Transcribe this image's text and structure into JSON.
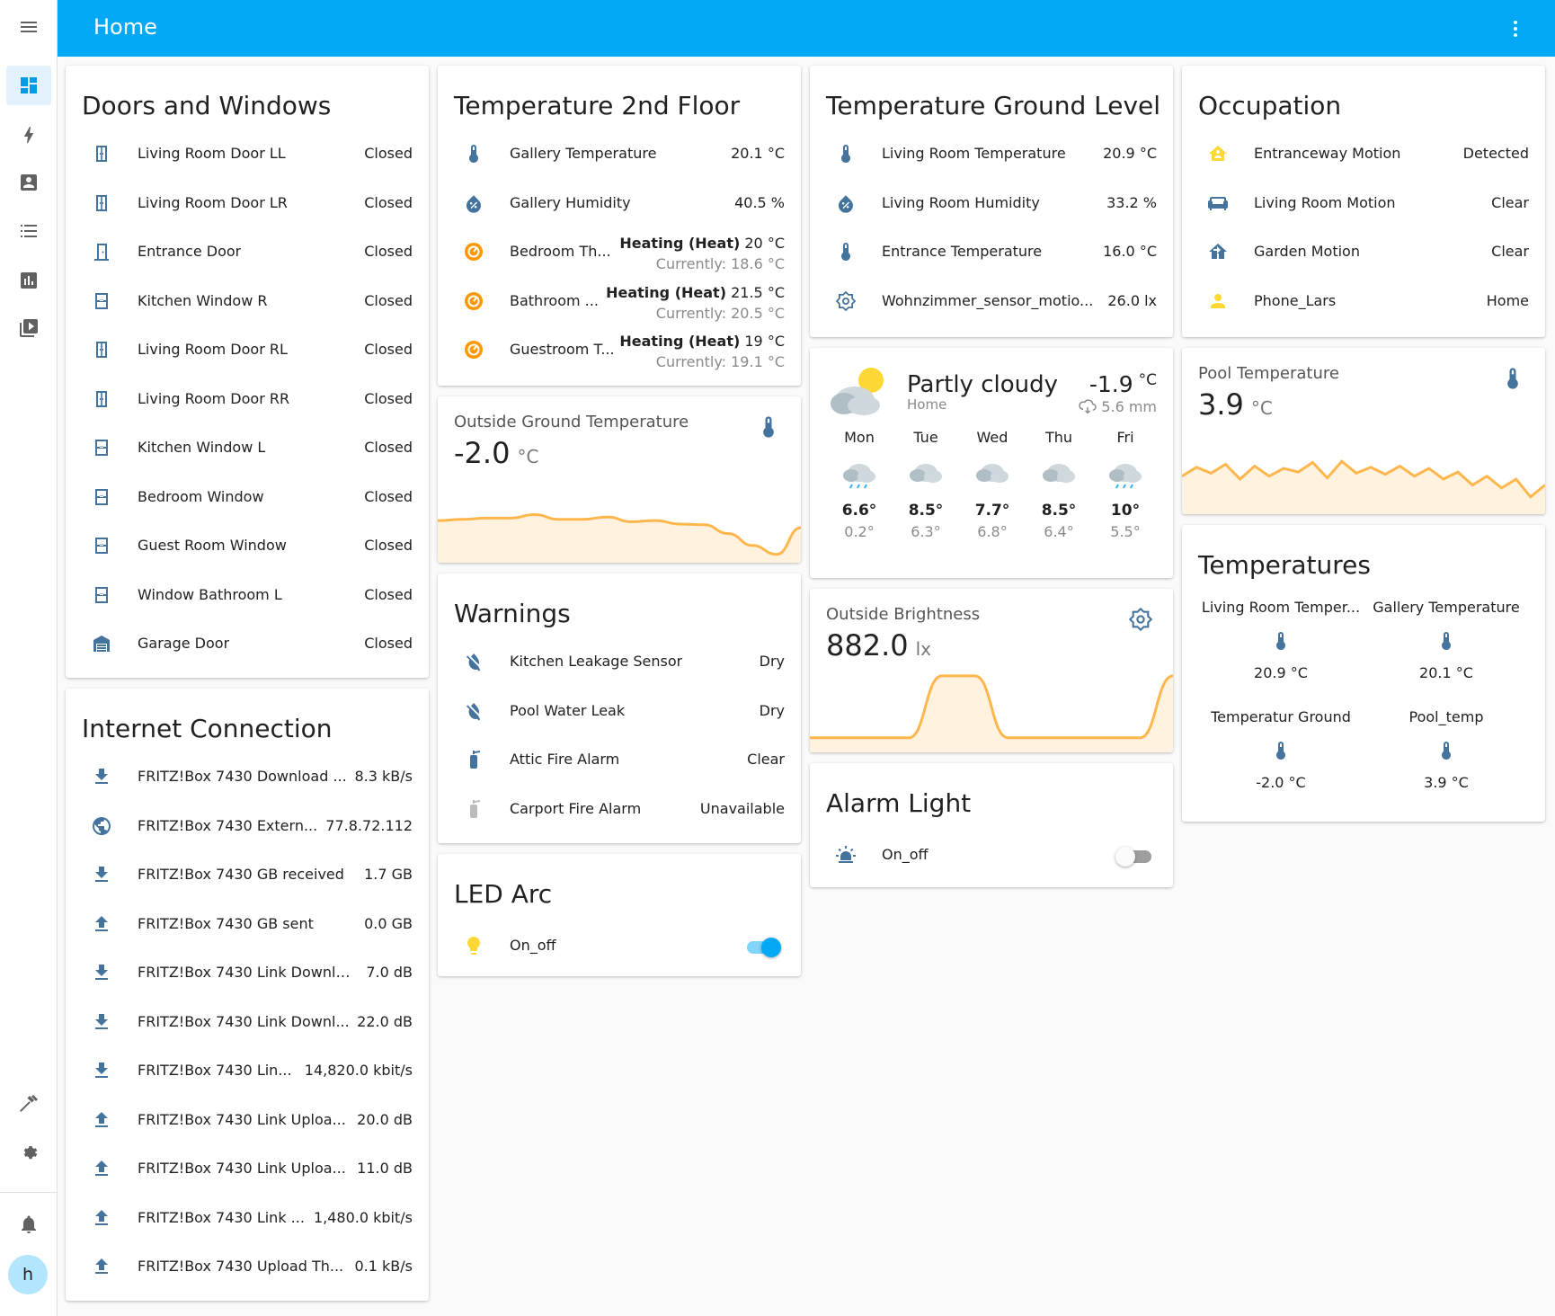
{
  "header": {
    "title": "Home"
  },
  "colors": {
    "accent": "#03a9f4",
    "icon": "#44739e",
    "active_icon": "#ff9800",
    "graph_line": "#ffb74d",
    "graph_fill": "#fff3e0"
  },
  "sidebar": {
    "avatar_letter": "h"
  },
  "doors": {
    "title": "Doors and Windows",
    "rows": [
      {
        "name": "Living Room Door LL",
        "state": "Closed",
        "icon": "door-icon"
      },
      {
        "name": "Living Room Door LR",
        "state": "Closed",
        "icon": "door-icon"
      },
      {
        "name": "Entrance Door",
        "state": "Closed",
        "icon": "door-closed-icon"
      },
      {
        "name": "Kitchen Window R",
        "state": "Closed",
        "icon": "window-icon"
      },
      {
        "name": "Living Room Door RL",
        "state": "Closed",
        "icon": "door-icon"
      },
      {
        "name": "Living Room Door RR",
        "state": "Closed",
        "icon": "door-icon"
      },
      {
        "name": "Kitchen Window L",
        "state": "Closed",
        "icon": "window-icon"
      },
      {
        "name": "Bedroom Window",
        "state": "Closed",
        "icon": "window-icon"
      },
      {
        "name": "Guest Room Window",
        "state": "Closed",
        "icon": "window-icon"
      },
      {
        "name": "Window Bathroom L",
        "state": "Closed",
        "icon": "window-icon"
      },
      {
        "name": "Garage Door",
        "state": "Closed",
        "icon": "garage-icon"
      }
    ]
  },
  "internet": {
    "title": "Internet Connection",
    "rows": [
      {
        "name": "FRITZ!Box 7430 Download ...",
        "state": "8.3 kB/s",
        "icon": "download-icon"
      },
      {
        "name": "FRITZ!Box 7430 Extern...",
        "state": "77.8.72.112",
        "icon": "globe-icon"
      },
      {
        "name": "FRITZ!Box 7430 GB received",
        "state": "1.7 GB",
        "icon": "download-icon"
      },
      {
        "name": "FRITZ!Box 7430 GB sent",
        "state": "0.0 GB",
        "icon": "upload-icon"
      },
      {
        "name": "FRITZ!Box 7430 Link Downlo...",
        "state": "7.0 dB",
        "icon": "download-icon"
      },
      {
        "name": "FRITZ!Box 7430 Link Downl...",
        "state": "22.0 dB",
        "icon": "download-icon"
      },
      {
        "name": "FRITZ!Box 7430 Lin...",
        "state": "14,820.0 kbit/s",
        "icon": "download-icon"
      },
      {
        "name": "FRITZ!Box 7430 Link Uploa...",
        "state": "20.0 dB",
        "icon": "upload-icon"
      },
      {
        "name": "FRITZ!Box 7430 Link Uploa...",
        "state": "11.0 dB",
        "icon": "upload-icon"
      },
      {
        "name": "FRITZ!Box 7430 Link ...",
        "state": "1,480.0 kbit/s",
        "icon": "upload-icon"
      },
      {
        "name": "FRITZ!Box 7430 Upload Th...",
        "state": "0.1 kB/s",
        "icon": "upload-icon"
      }
    ]
  },
  "temp2": {
    "title": "Temperature 2nd Floor",
    "sensors": [
      {
        "name": "Gallery Temperature",
        "state": "20.1 °C",
        "icon": "thermometer-icon"
      },
      {
        "name": "Gallery Humidity",
        "state": "40.5 %",
        "icon": "water-percent-icon"
      }
    ],
    "thermostats": [
      {
        "name": "Bedroom Th...",
        "mode": "Heating (Heat)",
        "target": "20 °C",
        "current": "Currently: 18.6 °C"
      },
      {
        "name": "Bathroom ...",
        "mode": "Heating (Heat)",
        "target": "21.5 °C",
        "current": "Currently: 20.5 °C"
      },
      {
        "name": "Guestroom T...",
        "mode": "Heating (Heat)",
        "target": "19 °C",
        "current": "Currently: 19.1 °C"
      }
    ]
  },
  "outside_temp": {
    "name": "Outside Ground Temperature",
    "value": "-2.0",
    "unit": "°C",
    "trend": [
      0.62,
      0.64,
      0.66,
      0.66,
      0.72,
      0.64,
      0.64,
      0.68,
      0.6,
      0.62,
      0.56,
      0.55,
      0.4,
      0.2,
      0.05,
      0.5
    ]
  },
  "warnings": {
    "title": "Warnings",
    "rows": [
      {
        "name": "Kitchen Leakage Sensor",
        "state": "Dry",
        "icon": "water-off-icon"
      },
      {
        "name": "Pool Water Leak",
        "state": "Dry",
        "icon": "water-off-icon"
      },
      {
        "name": "Attic Fire Alarm",
        "state": "Clear",
        "icon": "fire-extinguisher-icon"
      },
      {
        "name": "Carport Fire Alarm",
        "state": "Unavailable",
        "icon": "fire-extinguisher-icon"
      }
    ]
  },
  "led": {
    "title": "LED Arc",
    "name": "On_off",
    "on": true
  },
  "tempground": {
    "title": "Temperature Ground Level",
    "rows": [
      {
        "name": "Living Room Temperature",
        "state": "20.9 °C",
        "icon": "thermometer-icon"
      },
      {
        "name": "Living Room Humidity",
        "state": "33.2 %",
        "icon": "water-percent-icon"
      },
      {
        "name": "Entrance Temperature",
        "state": "16.0 °C",
        "icon": "thermometer-icon"
      },
      {
        "name": "Wohnzimmer_sensor_motio...",
        "state": "26.0 lx",
        "icon": "brightness-icon"
      }
    ]
  },
  "weather": {
    "condition": "Partly cloudy",
    "location": "Home",
    "temp": "-1.9",
    "unit": "°C",
    "precip": "5.6 mm",
    "forecast": [
      {
        "day": "Mon",
        "hi": "6.6°",
        "lo": "0.2°",
        "icon": "rainy-icon"
      },
      {
        "day": "Tue",
        "hi": "8.5°",
        "lo": "6.3°",
        "icon": "cloudy-icon"
      },
      {
        "day": "Wed",
        "hi": "7.7°",
        "lo": "6.8°",
        "icon": "cloudy-icon"
      },
      {
        "day": "Thu",
        "hi": "8.5°",
        "lo": "6.4°",
        "icon": "cloudy-icon"
      },
      {
        "day": "Fri",
        "hi": "10°",
        "lo": "5.5°",
        "icon": "rainy-icon"
      }
    ]
  },
  "brightness": {
    "name": "Outside Brightness",
    "value": "882.0",
    "unit": "lx",
    "trend": [
      0.12,
      0.12,
      0.12,
      0.12,
      0.92,
      0.92,
      0.12,
      0.12,
      0.12,
      0.12,
      0.12,
      0.92
    ]
  },
  "alarm": {
    "title": "Alarm Light",
    "name": "On_off",
    "on": false
  },
  "occupation": {
    "title": "Occupation",
    "rows": [
      {
        "name": "Entranceway Motion",
        "state": "Detected",
        "icon": "home-motion-icon"
      },
      {
        "name": "Living Room Motion",
        "state": "Clear",
        "icon": "sofa-icon"
      },
      {
        "name": "Garden Motion",
        "state": "Clear",
        "icon": "home-import-icon"
      },
      {
        "name": "Phone_Lars",
        "state": "Home",
        "icon": "account-icon"
      }
    ]
  },
  "pool": {
    "name": "Pool Temperature",
    "value": "3.9",
    "unit": "°C",
    "trend": [
      0.55,
      0.7,
      0.6,
      0.75,
      0.5,
      0.72,
      0.55,
      0.68,
      0.62,
      0.78,
      0.52,
      0.8,
      0.6,
      0.7,
      0.58,
      0.72,
      0.55,
      0.68,
      0.5,
      0.62,
      0.4,
      0.55,
      0.35,
      0.5,
      0.2,
      0.4
    ]
  },
  "temperatures": {
    "title": "Temperatures",
    "items": [
      {
        "name": "Living Room Temper...",
        "value": "20.9 °C"
      },
      {
        "name": "Gallery Temperature",
        "value": "20.1 °C"
      },
      {
        "name": "Temperatur Ground",
        "value": "-2.0 °C"
      },
      {
        "name": "Pool_temp",
        "value": "3.9 °C"
      }
    ]
  }
}
